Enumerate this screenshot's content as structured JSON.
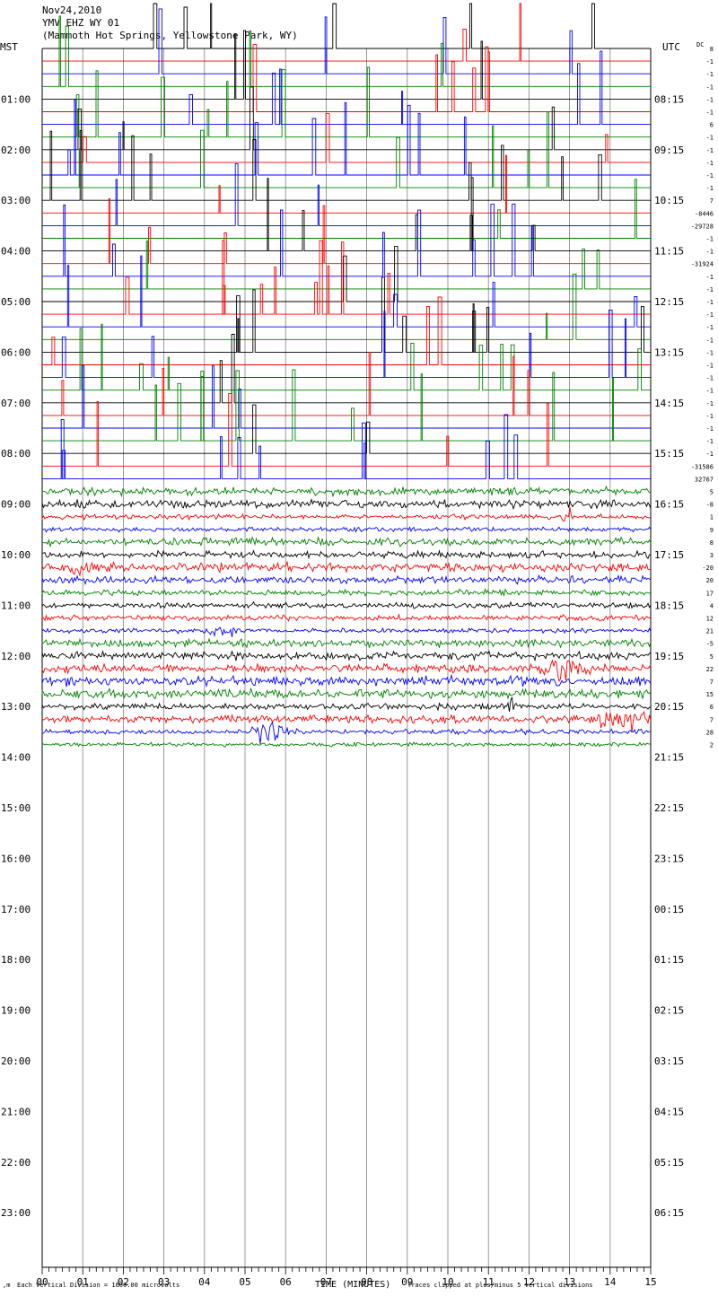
{
  "header": {
    "date": "Nov24,2010",
    "station": "YMV EHZ WY 01",
    "location": "(Mammoth Hot Springs, Yellowstone Park, WY)"
  },
  "left_axis_title": "MST",
  "right_axis_title": "UTC",
  "dc_header": "DC",
  "footer": {
    "vertical_division": "Each Vertical Division = 1600.00 microvolts",
    "x_title": "TIME (MINUTES)",
    "clipping": "Traces clipped at plus/minus 5 vertical divisions"
  },
  "colors": {
    "black": "#000000",
    "red": "#ff0000",
    "blue": "#0000ff",
    "green": "#008000",
    "grid": "#808080"
  },
  "chart_data": {
    "type": "line",
    "title": "",
    "xlabel": "TIME (MINUTES)",
    "ylabel": "",
    "xlim": [
      0,
      15
    ],
    "x_ticks": [
      "00",
      "01",
      "02",
      "03",
      "04",
      "05",
      "06",
      "07",
      "08",
      "09",
      "10",
      "11",
      "12",
      "13",
      "14",
      "15"
    ],
    "minutes_per_line": 15,
    "trace_color_cycle": [
      "black",
      "red",
      "blue",
      "green"
    ],
    "mst_labels": [
      "01:00",
      "02:00",
      "03:00",
      "04:00",
      "05:00",
      "06:00",
      "07:00",
      "08:00",
      "09:00",
      "10:00",
      "11:00",
      "12:00",
      "13:00",
      "14:00",
      "15:00",
      "16:00",
      "17:00",
      "18:00",
      "19:00",
      "20:00",
      "21:00",
      "22:00",
      "23:00"
    ],
    "utc_labels": [
      "08:15",
      "09:15",
      "10:15",
      "11:15",
      "12:15",
      "13:15",
      "14:15",
      "15:15",
      "16:15",
      "17:15",
      "18:15",
      "19:15",
      "20:15",
      "21:15",
      "22:15",
      "23:15",
      "00:15",
      "01:15",
      "02:15",
      "03:15",
      "04:15",
      "05:15",
      "06:15"
    ],
    "dc_offsets": [
      "8",
      "-1",
      "-1",
      "-1",
      "-1",
      "-1",
      "6",
      "-1",
      "-1",
      "-1",
      "-1",
      "-1",
      "7",
      "-8446",
      "-29728",
      "-1",
      "-1",
      "-31924",
      "-1",
      "-1",
      "-1",
      "-1",
      "-1",
      "-1",
      "-1",
      "-1",
      "-1",
      "-1",
      "-1",
      "-1",
      "-1",
      "-1",
      "-1",
      "-31586",
      "32767",
      "5",
      "-8",
      "1",
      "9",
      "8",
      "3",
      "-20",
      "20",
      "17",
      "4",
      "12",
      "21",
      "-5",
      "5",
      "22",
      "7",
      "15",
      "6",
      "7",
      "28",
      "2"
    ],
    "clipped_trace_count": 35,
    "noise_trace_count": 21
  }
}
